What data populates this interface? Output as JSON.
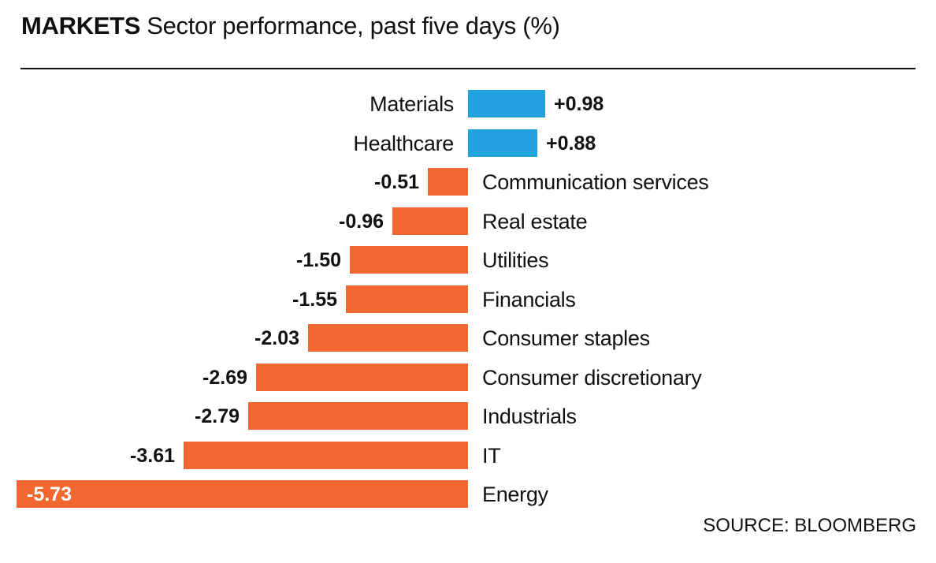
{
  "title": {
    "kicker": "MARKETS",
    "text": "Sector performance, past five days (%)"
  },
  "source": "SOURCE: BLOOMBERG",
  "colors": {
    "positive_bar": "#22a3e0",
    "negative_bar": "#f0672f",
    "text": "#111111",
    "value_inside": "#ffffff",
    "rule": "#111111",
    "background": "#ffffff"
  },
  "chart_data": {
    "type": "bar",
    "orientation": "horizontal",
    "title": "MARKETS Sector performance, past five days (%)",
    "xlabel": "",
    "ylabel": "",
    "categories": [
      "Materials",
      "Healthcare",
      "Communication services",
      "Real estate",
      "Utilities",
      "Financials",
      "Consumer staples",
      "Consumer discretionary",
      "Industrials",
      "IT",
      "Energy"
    ],
    "values": [
      0.98,
      0.88,
      -0.51,
      -0.96,
      -1.5,
      -1.55,
      -2.03,
      -2.69,
      -2.79,
      -3.61,
      -5.73
    ],
    "value_labels": [
      "+0.98",
      "+0.88",
      "-0.51",
      "-0.96",
      "-1.50",
      "-1.55",
      "-2.03",
      "-2.69",
      "-2.79",
      "-3.61",
      "-5.73"
    ],
    "axis_range": [
      -5.73,
      0.98
    ],
    "baseline_value": 0,
    "grid": false,
    "legend": "none",
    "annotations": "positive bars blue with value right of bar; negative bars orange with value left of bar; Energy value shown inside bar in white"
  }
}
